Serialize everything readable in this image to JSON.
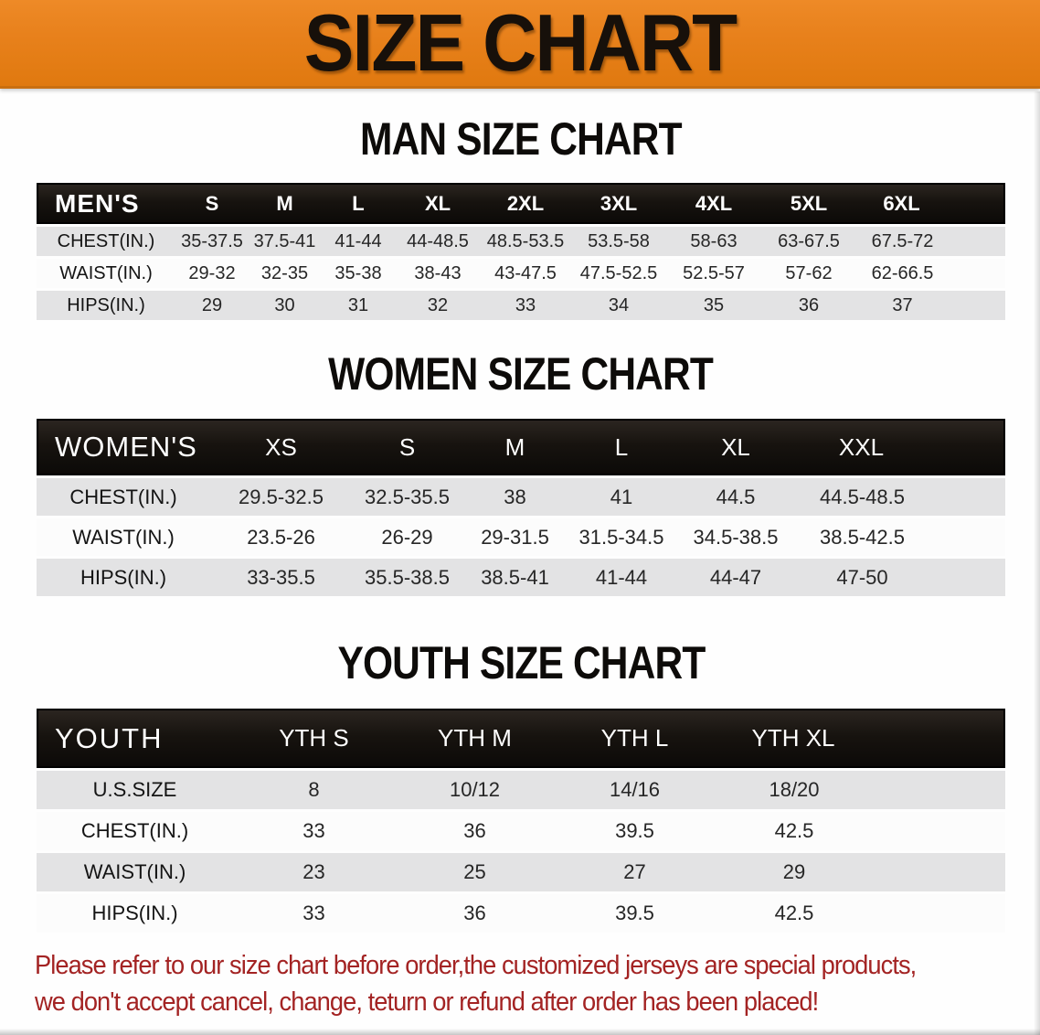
{
  "banner": {
    "title": "SIZE CHART"
  },
  "colors": {
    "banner_orange": "#e8811c",
    "title_black": "#17100a",
    "header_bar": "#17130f",
    "row_gray": "#e3e3e4",
    "row_white": "#fcfcfc",
    "body_text": "#262626",
    "note_red": "#a32323"
  },
  "sections": [
    {
      "id": "men",
      "heading": "MAN SIZE CHART",
      "label": "MEN'S",
      "columns": [
        "S",
        "M",
        "L",
        "XL",
        "2XL",
        "3XL",
        "4XL",
        "5XL",
        "6XL"
      ],
      "rows": [
        {
          "label": "CHEST(IN.)",
          "values": [
            "35-37.5",
            "37.5-41",
            "41-44",
            "44-48.5",
            "48.5-53.5",
            "53.5-58",
            "58-63",
            "63-67.5",
            "67.5-72"
          ]
        },
        {
          "label": "WAIST(IN.)",
          "values": [
            "29-32",
            "32-35",
            "35-38",
            "38-43",
            "43-47.5",
            "47.5-52.5",
            "52.5-57",
            "57-62",
            "62-66.5"
          ]
        },
        {
          "label": "HIPS(IN.)",
          "values": [
            "29",
            "30",
            "31",
            "32",
            "33",
            "34",
            "35",
            "36",
            "37"
          ]
        }
      ]
    },
    {
      "id": "women",
      "heading": "WOMEN SIZE CHART",
      "label": "WOMEN'S",
      "columns": [
        "XS",
        "S",
        "M",
        "L",
        "XL",
        "XXL"
      ],
      "rows": [
        {
          "label": "CHEST(IN.)",
          "values": [
            "29.5-32.5",
            "32.5-35.5",
            "38",
            "41",
            "44.5",
            "44.5-48.5"
          ]
        },
        {
          "label": "WAIST(IN.)",
          "values": [
            "23.5-26",
            "26-29",
            "29-31.5",
            "31.5-34.5",
            "34.5-38.5",
            "38.5-42.5"
          ]
        },
        {
          "label": "HIPS(IN.)",
          "values": [
            "33-35.5",
            "35.5-38.5",
            "38.5-41",
            "41-44",
            "44-47",
            "47-50"
          ]
        }
      ]
    },
    {
      "id": "youth",
      "heading": "YOUTH SIZE CHART",
      "label": "YOUTH",
      "columns": [
        "YTH S",
        "YTH M",
        "YTH L",
        "YTH XL"
      ],
      "rows": [
        {
          "label": "U.S.SIZE",
          "values": [
            "8",
            "10/12",
            "14/16",
            "18/20"
          ]
        },
        {
          "label": "CHEST(IN.)",
          "values": [
            "33",
            "36",
            "39.5",
            "42.5"
          ]
        },
        {
          "label": "WAIST(IN.)",
          "values": [
            "23",
            "25",
            "27",
            "29"
          ]
        },
        {
          "label": "HIPS(IN.)",
          "values": [
            "33",
            "36",
            "39.5",
            "42.5"
          ]
        }
      ]
    }
  ],
  "note": {
    "line1": "Please refer to our size chart before order,the customized jerseys are special products,",
    "line2": "we don't accept cancel, change, teturn or refund after order has been placed!"
  }
}
